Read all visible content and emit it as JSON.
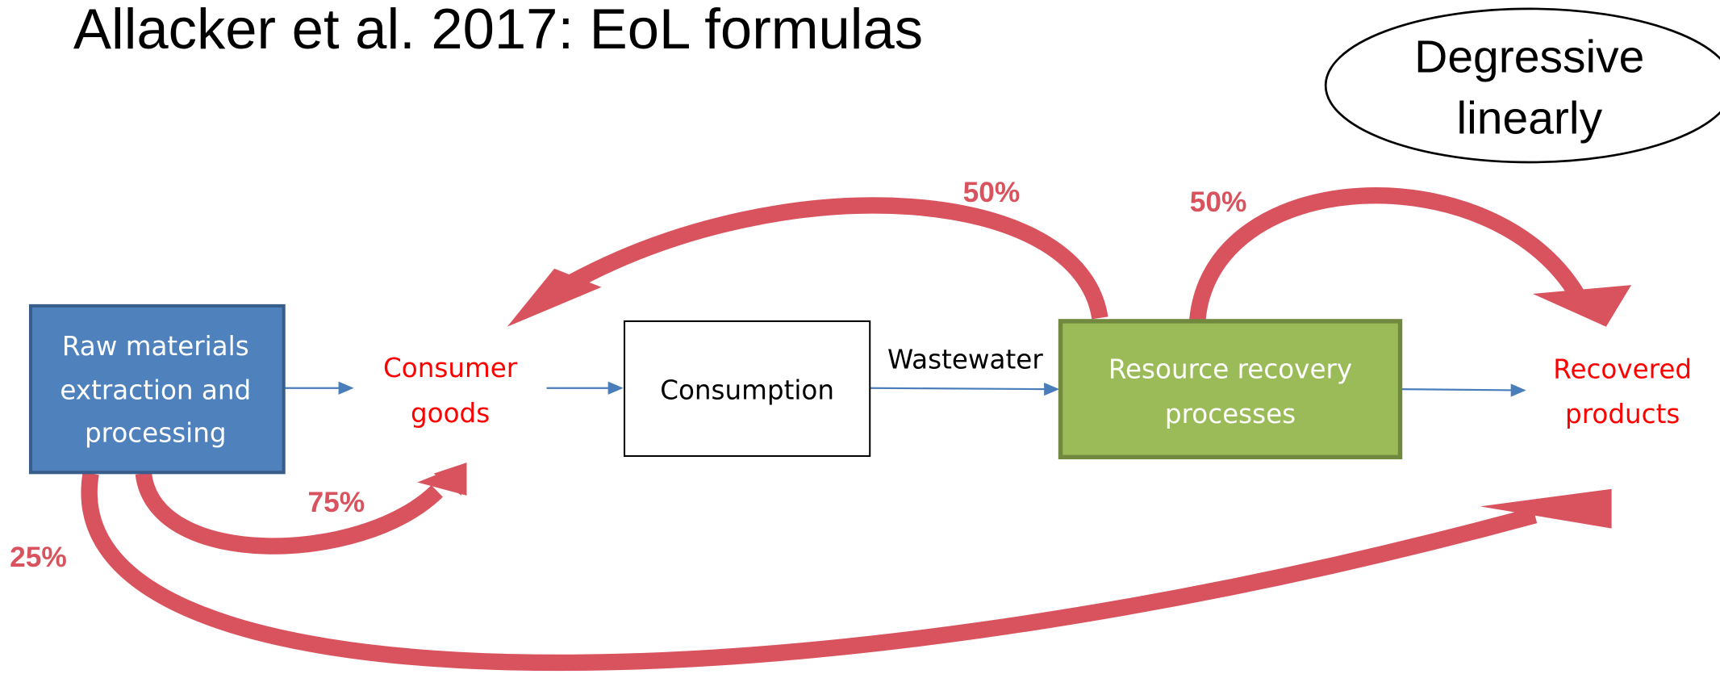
{
  "title": "Allacker et al. 2017: EoL formulas",
  "badge": {
    "lines": [
      "Degressive",
      "linearly"
    ]
  },
  "nodes": [
    {
      "lines": [
        "Raw materials",
        "extraction and",
        "processing"
      ]
    },
    {
      "lines": [
        "Consumer",
        "goods"
      ]
    },
    {
      "lines": [
        "Consumption"
      ]
    },
    {
      "lines": [
        "Resource recovery",
        "processes"
      ]
    },
    {
      "lines": [
        "Recovered",
        "products"
      ]
    }
  ],
  "edge_label": "Wastewater",
  "flows": [
    "50%",
    "50%",
    "75%",
    "25%"
  ]
}
